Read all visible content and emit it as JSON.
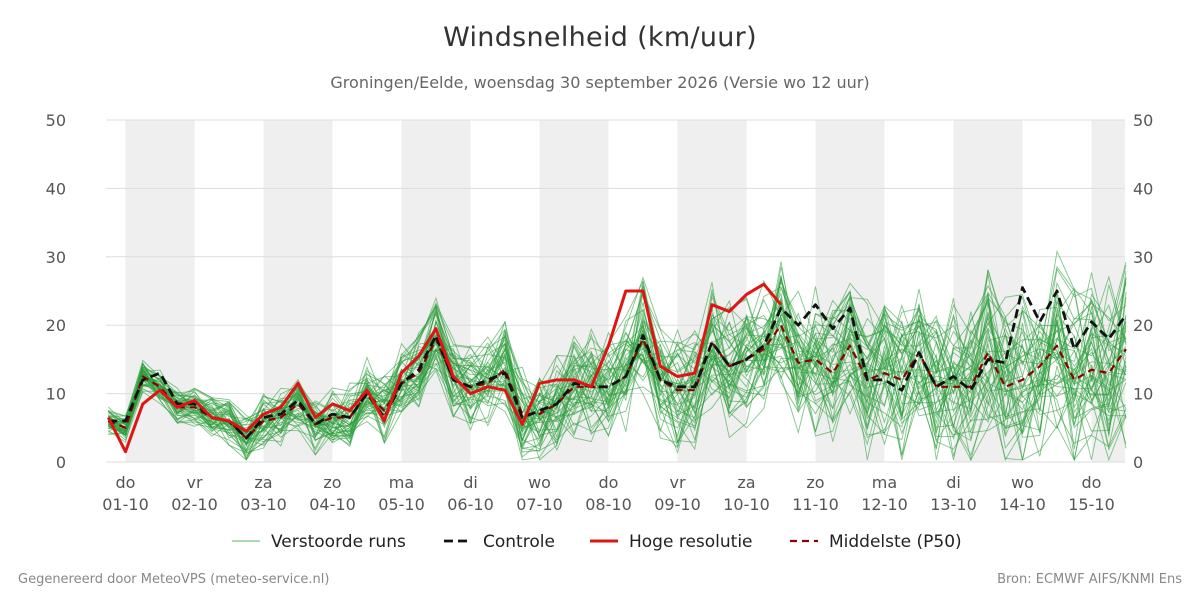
{
  "header": {
    "title": "Windsnelheid (km/uur)",
    "subtitle": "Groningen/Eelde, woensdag 30 september 2026 (Versie wo 12 uur)"
  },
  "footer": {
    "left": "Gegenereerd door MeteoVPS (meteo-service.nl)",
    "right": "Bron: ECMWF AIFS/KNMI Ens"
  },
  "colors": {
    "ensemble": "#2e9e3e",
    "control": "#111111",
    "high_res": "#e11414",
    "median": "#8b0000",
    "shade": "#efefef",
    "grid": "#dddddd"
  },
  "chart_data": {
    "type": "line",
    "title": "Windsnelheid (km/uur)",
    "ylim": [
      0,
      50
    ],
    "yticks": [
      0,
      10,
      20,
      30,
      40,
      50
    ],
    "xlim": [
      0,
      14.5
    ],
    "grid": true,
    "legend_position": "bottom",
    "alternate_day_shading": true,
    "days": [
      {
        "day": "do",
        "date": "01-10"
      },
      {
        "day": "vr",
        "date": "02-10"
      },
      {
        "day": "za",
        "date": "03-10"
      },
      {
        "day": "zo",
        "date": "04-10"
      },
      {
        "day": "ma",
        "date": "05-10"
      },
      {
        "day": "di",
        "date": "06-10"
      },
      {
        "day": "wo",
        "date": "07-10"
      },
      {
        "day": "do",
        "date": "08-10"
      },
      {
        "day": "vr",
        "date": "09-10"
      },
      {
        "day": "za",
        "date": "10-10"
      },
      {
        "day": "zo",
        "date": "11-10"
      },
      {
        "day": "ma",
        "date": "12-10"
      },
      {
        "day": "di",
        "date": "13-10"
      },
      {
        "day": "wo",
        "date": "14-10"
      },
      {
        "day": "do",
        "date": "15-10"
      }
    ],
    "legend": [
      {
        "key": "ensemble",
        "label": "Verstoorde runs"
      },
      {
        "key": "control",
        "label": "Controle"
      },
      {
        "key": "high_res",
        "label": "Hoge resolutie"
      },
      {
        "key": "median",
        "label": "Middelste (P50)"
      }
    ],
    "ensemble_count": 50,
    "series": {
      "high_res": {
        "x": [
          -0.25,
          0,
          0.25,
          0.5,
          0.75,
          1,
          1.25,
          1.5,
          1.75,
          2,
          2.25,
          2.5,
          2.75,
          3,
          3.25,
          3.5,
          3.75,
          4,
          4.25,
          4.5,
          4.75,
          5,
          5.25,
          5.5,
          5.75,
          6,
          6.25,
          6.5,
          6.75,
          7,
          7.25,
          7.5,
          7.75,
          8,
          8.25,
          8.5,
          8.75,
          9,
          9.25,
          9.5
        ],
        "y": [
          6.5,
          1.5,
          8.5,
          10.5,
          8,
          9,
          6.5,
          6,
          4.5,
          7,
          8,
          11.5,
          6.5,
          8.5,
          7.5,
          10.5,
          6,
          13,
          15.5,
          19.5,
          12.5,
          10,
          11,
          10.5,
          5.5,
          11.5,
          12,
          12,
          11,
          17,
          25,
          25,
          14,
          12.5,
          13,
          23,
          22,
          24.5,
          26,
          23
        ]
      },
      "control": {
        "x": [
          -0.25,
          0,
          0.25,
          0.5,
          0.75,
          1,
          1.25,
          1.5,
          1.75,
          2,
          2.25,
          2.5,
          2.75,
          3,
          3.25,
          3.5,
          3.75,
          4,
          4.25,
          4.5,
          4.75,
          5,
          5.25,
          5.5,
          5.75,
          6,
          6.25,
          6.5,
          6.75,
          7,
          7.25,
          7.5,
          7.75,
          8,
          8.25,
          8.5,
          8.75,
          9,
          9.25,
          9.5,
          9.75,
          10,
          10.25,
          10.5,
          10.75,
          11,
          11.25,
          11.5,
          11.75,
          12,
          12.25,
          12.5,
          12.75,
          13,
          13.25,
          13.5,
          13.75,
          14,
          14.25,
          14.5
        ],
        "y": [
          6,
          6,
          12,
          13,
          8.5,
          8.5,
          6.5,
          6,
          3.5,
          6.5,
          7,
          9,
          5.5,
          7,
          6.5,
          10,
          6.5,
          11.5,
          13.5,
          18.5,
          12,
          11,
          12,
          13,
          6.5,
          7.5,
          8.5,
          11.5,
          11,
          11,
          12.5,
          18.5,
          12,
          11,
          11,
          17.5,
          14,
          15,
          17,
          22.5,
          20,
          23,
          19.5,
          22.5,
          12,
          12,
          10.5,
          16,
          11,
          12.5,
          10.5,
          15,
          14.5,
          25.5,
          20.5,
          25,
          16.5,
          20.5,
          18,
          21.5
        ]
      },
      "median": {
        "x": [
          -0.25,
          0,
          0.25,
          0.5,
          0.75,
          1,
          1.25,
          1.5,
          1.75,
          2,
          2.25,
          2.5,
          2.75,
          3,
          3.25,
          3.5,
          3.75,
          4,
          4.25,
          4.5,
          4.75,
          5,
          5.25,
          5.5,
          5.75,
          6,
          6.25,
          6.5,
          6.75,
          7,
          7.25,
          7.5,
          7.75,
          8,
          8.25,
          8.5,
          8.75,
          9,
          9.25,
          9.5,
          9.75,
          10,
          10.25,
          10.5,
          10.75,
          11,
          11.25,
          11.5,
          11.75,
          12,
          12.25,
          12.5,
          12.75,
          13,
          13.25,
          13.5,
          13.75,
          14,
          14.25,
          14.5
        ],
        "y": [
          6,
          5,
          12.5,
          11,
          8,
          8,
          6.5,
          6,
          3.5,
          6,
          6.5,
          8.5,
          5.5,
          6.5,
          6.5,
          10,
          7.5,
          11.5,
          13,
          18,
          12,
          11,
          11.5,
          13.5,
          7,
          7,
          8.5,
          11,
          11,
          11,
          12.5,
          18,
          12,
          10.5,
          10.5,
          17.5,
          14,
          15,
          16.5,
          20,
          14.5,
          15,
          13,
          17,
          12,
          13,
          12,
          16,
          11,
          11,
          11,
          16,
          11,
          12,
          14,
          17,
          12,
          13.5,
          13,
          16.5
        ]
      }
    }
  }
}
